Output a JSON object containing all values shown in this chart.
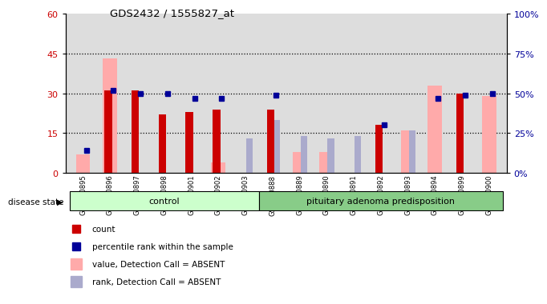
{
  "title": "GDS2432 / 1555827_at",
  "samples": [
    "GSM100895",
    "GSM100896",
    "GSM100897",
    "GSM100898",
    "GSM100901",
    "GSM100902",
    "GSM100903",
    "GSM100888",
    "GSM100889",
    "GSM100890",
    "GSM100891",
    "GSM100892",
    "GSM100893",
    "GSM100894",
    "GSM100899",
    "GSM100900"
  ],
  "groups": [
    "control",
    "control",
    "control",
    "control",
    "control",
    "control",
    "control",
    "pituitary adenoma predisposition",
    "pituitary adenoma predisposition",
    "pituitary adenoma predisposition",
    "pituitary adenoma predisposition",
    "pituitary adenoma predisposition",
    "pituitary adenoma predisposition",
    "pituitary adenoma predisposition",
    "pituitary adenoma predisposition",
    "pituitary adenoma predisposition"
  ],
  "count": [
    0,
    31,
    31,
    22,
    23,
    24,
    0,
    24,
    0,
    0,
    0,
    18,
    0,
    0,
    30,
    0
  ],
  "percentile": [
    14,
    52,
    50,
    50,
    47,
    47,
    null,
    49,
    null,
    null,
    null,
    30,
    null,
    47,
    49,
    50
  ],
  "value_absent": [
    7,
    43,
    null,
    null,
    null,
    4,
    null,
    null,
    8,
    8,
    null,
    null,
    16,
    33,
    null,
    29
  ],
  "rank_absent": [
    null,
    null,
    null,
    null,
    null,
    null,
    13,
    20,
    14,
    13,
    14,
    null,
    16,
    null,
    null,
    null
  ],
  "left_ylim": [
    0,
    60
  ],
  "right_ylim": [
    0,
    100
  ],
  "left_yticks": [
    0,
    15,
    30,
    45,
    60
  ],
  "right_yticks": [
    0,
    25,
    50,
    75,
    100
  ],
  "right_yticklabels": [
    "0%",
    "25%",
    "50%",
    "75%",
    "100%"
  ],
  "control_count": 7,
  "color_count": "#cc0000",
  "color_percentile": "#000099",
  "color_value_absent": "#ffaaaa",
  "color_rank_absent": "#aaaacc",
  "color_control_bg": "#ccffcc",
  "color_pituitary_bg": "#88cc88",
  "color_sample_bg": "#dddddd",
  "bar_width": 0.35,
  "grid_dotted_at": [
    15,
    30,
    45
  ]
}
